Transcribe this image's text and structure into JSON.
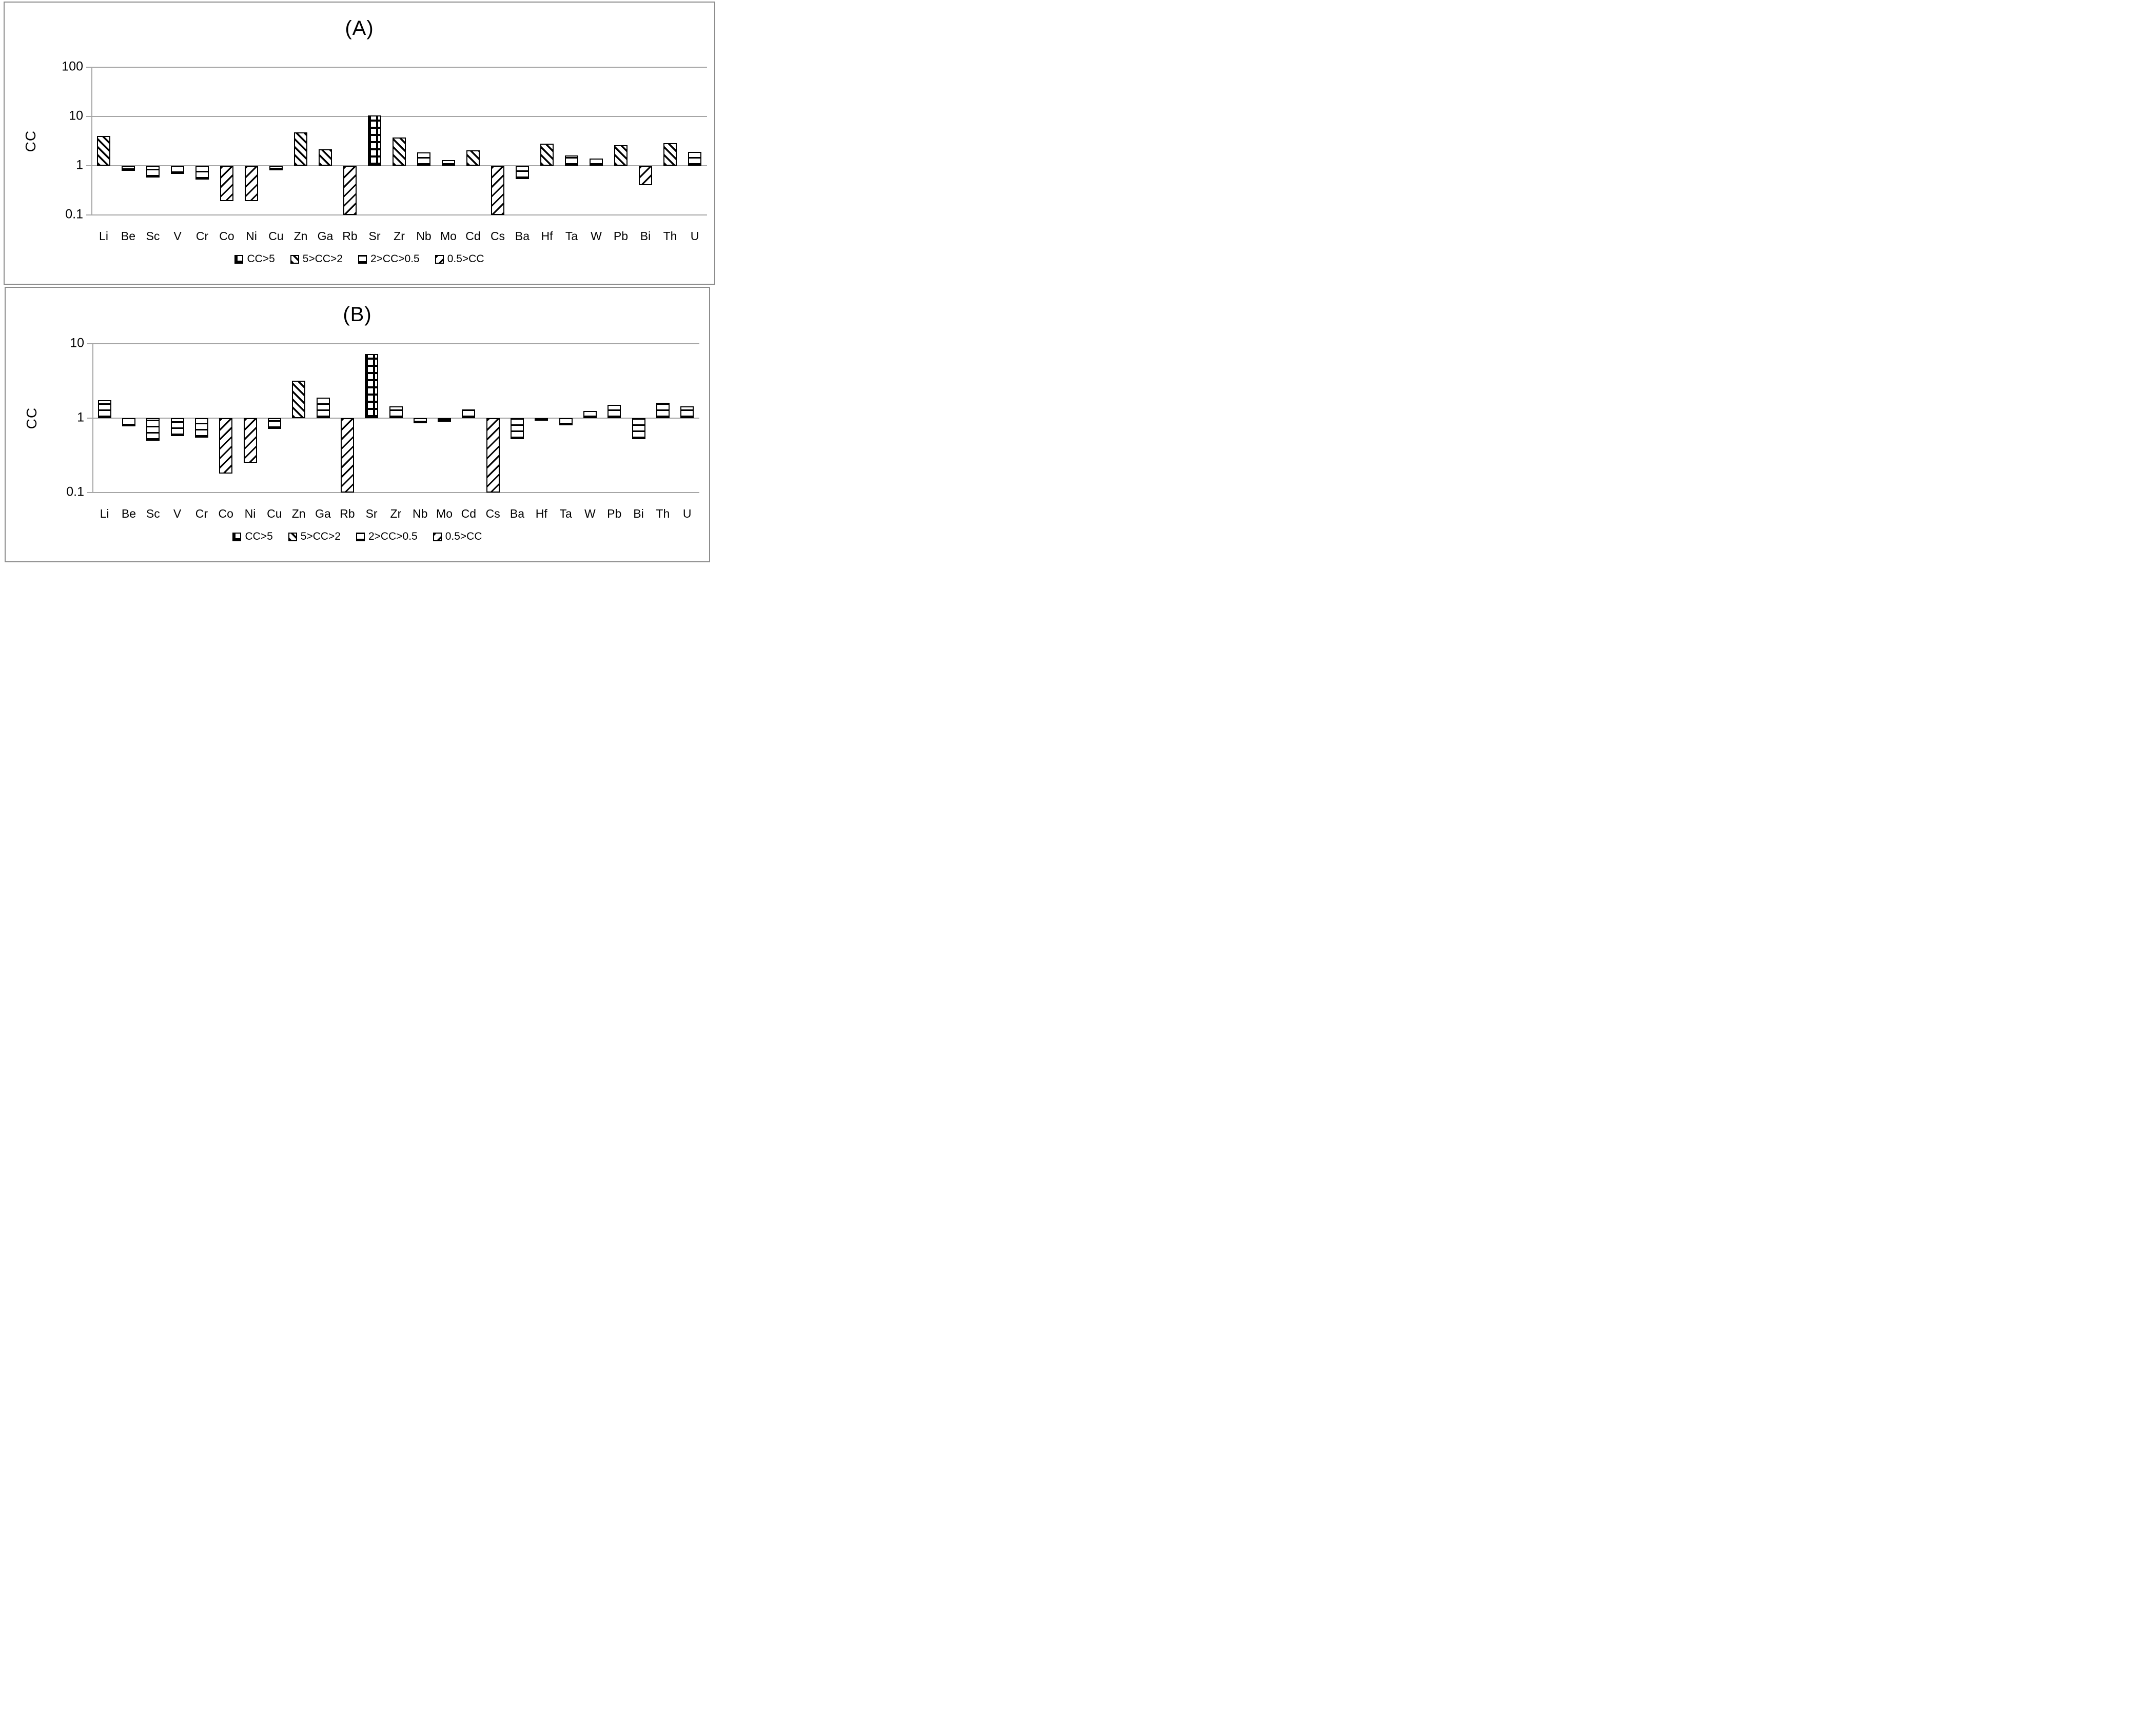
{
  "panels": [
    {
      "title": "(A)",
      "y_axis_label": "CC",
      "y_ticks": [
        "100",
        "10",
        "1",
        "0.1"
      ],
      "legend": [
        {
          "label": "CC>5",
          "pattern": "grid"
        },
        {
          "label": "5>CC>2",
          "pattern": "diag-down"
        },
        {
          "label": "2>CC>0.5",
          "pattern": "horiz"
        },
        {
          "label": "0.5>CC",
          "pattern": "diag-up"
        }
      ]
    },
    {
      "title": "(B)",
      "y_axis_label": "CC",
      "y_ticks": [
        "10",
        "1",
        "0.1"
      ],
      "legend": [
        {
          "label": "CC>5",
          "pattern": "grid"
        },
        {
          "label": "5>CC>2",
          "pattern": "diag-down"
        },
        {
          "label": "2>CC>0.5",
          "pattern": "horiz"
        },
        {
          "label": "0.5>CC",
          "pattern": "diag-up"
        }
      ]
    }
  ],
  "chart_data": [
    {
      "type": "bar",
      "title": "(A)",
      "ylabel": "CC",
      "yscale": "log",
      "ylim": [
        0.1,
        100
      ],
      "baseline": 1,
      "gridlines": [
        100,
        10,
        1,
        0.1
      ],
      "grid": true,
      "legend_position": "bottom",
      "categories": [
        "Li",
        "Be",
        "Sc",
        "V",
        "Cr",
        "Co",
        "Ni",
        "Cu",
        "Zn",
        "Ga",
        "Rb",
        "Sr",
        "Zr",
        "Nb",
        "Mo",
        "Cd",
        "Cs",
        "Ba",
        "Hf",
        "Ta",
        "W",
        "Pb",
        "Bi",
        "Th",
        "U"
      ],
      "values": [
        4.0,
        0.78,
        0.58,
        0.68,
        0.52,
        0.19,
        0.19,
        0.8,
        4.8,
        2.15,
        0.1,
        10.5,
        3.7,
        1.85,
        1.3,
        2.05,
        0.1,
        0.53,
        2.8,
        1.6,
        1.4,
        2.6,
        0.4,
        2.9,
        1.9
      ],
      "patterns": [
        "diag-down",
        "horiz",
        "horiz",
        "horiz",
        "horiz",
        "diag-up",
        "diag-up",
        "horiz",
        "diag-down",
        "diag-down",
        "diag-up",
        "grid",
        "diag-down",
        "horiz",
        "horiz",
        "diag-down",
        "diag-up",
        "horiz",
        "diag-down",
        "horiz",
        "horiz",
        "diag-down",
        "diag-up",
        "diag-down",
        "horiz"
      ],
      "clipped_at_axis_min": [
        "Rb",
        "Cs"
      ]
    },
    {
      "type": "bar",
      "title": "(B)",
      "ylabel": "CC",
      "yscale": "log",
      "ylim": [
        0.1,
        10
      ],
      "baseline": 1,
      "gridlines": [
        10,
        1,
        0.1
      ],
      "grid": true,
      "legend_position": "bottom",
      "categories": [
        "Li",
        "Be",
        "Sc",
        "V",
        "Cr",
        "Co",
        "Ni",
        "Cu",
        "Zn",
        "Ga",
        "Rb",
        "Sr",
        "Zr",
        "Nb",
        "Mo",
        "Cd",
        "Cs",
        "Ba",
        "Hf",
        "Ta",
        "W",
        "Pb",
        "Bi",
        "Th",
        "U"
      ],
      "values": [
        1.75,
        0.78,
        0.5,
        0.57,
        0.55,
        0.18,
        0.25,
        0.72,
        3.2,
        1.9,
        0.1,
        7.3,
        1.45,
        0.85,
        0.9,
        1.3,
        0.1,
        0.52,
        0.93,
        0.8,
        1.25,
        1.5,
        0.52,
        1.6,
        1.45
      ],
      "patterns": [
        "horiz",
        "horiz",
        "horiz",
        "horiz",
        "horiz",
        "diag-up",
        "diag-up",
        "horiz",
        "diag-down",
        "horiz",
        "diag-up",
        "grid",
        "horiz",
        "horiz",
        "horiz",
        "horiz",
        "diag-up",
        "horiz",
        "horiz",
        "horiz",
        "horiz",
        "horiz",
        "horiz",
        "horiz",
        "horiz"
      ],
      "clipped_at_axis_min": [
        "Rb",
        "Cs"
      ]
    }
  ]
}
